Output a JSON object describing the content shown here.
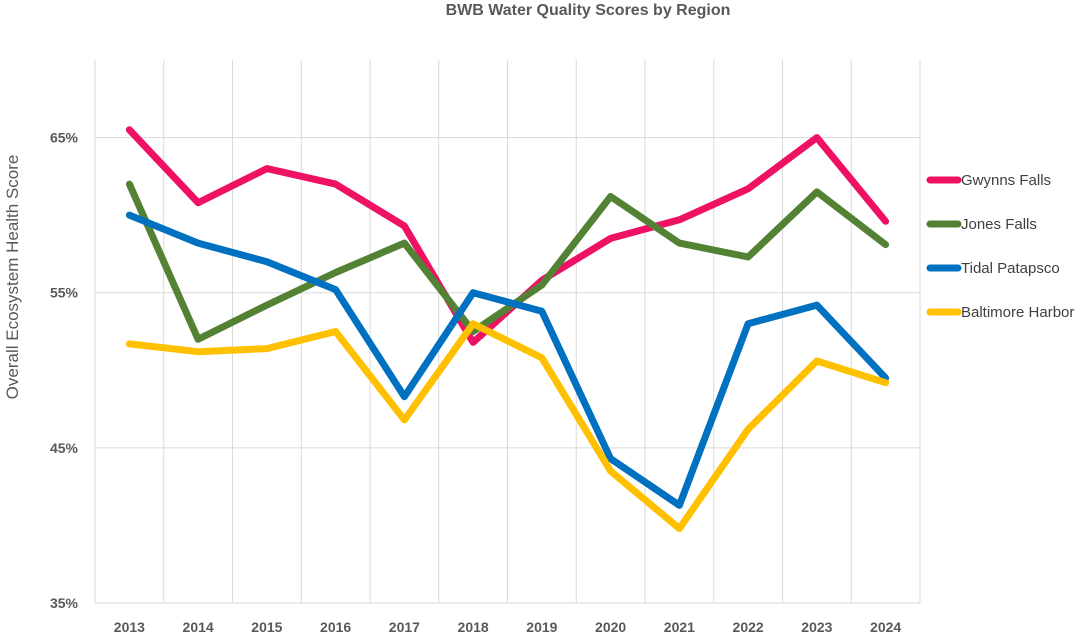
{
  "chart_data": {
    "type": "line",
    "title": "BWB Water Quality Scores by Region",
    "xlabel": "",
    "ylabel": "Overall Ecosystem Health Score",
    "x": [
      "2013",
      "2014",
      "2015",
      "2016",
      "2017",
      "2018",
      "2019",
      "2020",
      "2021",
      "2022",
      "2023",
      "2024"
    ],
    "ylim": [
      35,
      70
    ],
    "yticks": [
      35,
      45,
      55,
      65
    ],
    "ytick_labels": [
      "35%",
      "45%",
      "55%",
      "65%"
    ],
    "grid": true,
    "legend": "right",
    "series": [
      {
        "name": "Gwynns Falls",
        "color": "#ee1164",
        "values": [
          65.5,
          60.8,
          63.0,
          62.0,
          59.3,
          51.8,
          55.8,
          58.5,
          59.7,
          61.7,
          65.0,
          59.6
        ]
      },
      {
        "name": "Jones Falls",
        "color": "#548235",
        "values": [
          62.0,
          52.0,
          54.2,
          56.3,
          58.2,
          52.5,
          55.5,
          61.2,
          58.2,
          57.3,
          61.5,
          58.1
        ]
      },
      {
        "name": "Tidal Patapsco",
        "color": "#0070c0",
        "values": [
          60.0,
          58.2,
          57.0,
          55.2,
          48.3,
          55.0,
          53.8,
          44.3,
          41.3,
          53.0,
          54.2,
          49.5
        ]
      },
      {
        "name": "Baltimore Harbor",
        "color": "#ffc000",
        "values": [
          51.7,
          51.2,
          51.4,
          52.5,
          46.8,
          53.0,
          50.8,
          43.5,
          39.8,
          46.2,
          50.6,
          49.2
        ]
      }
    ]
  }
}
